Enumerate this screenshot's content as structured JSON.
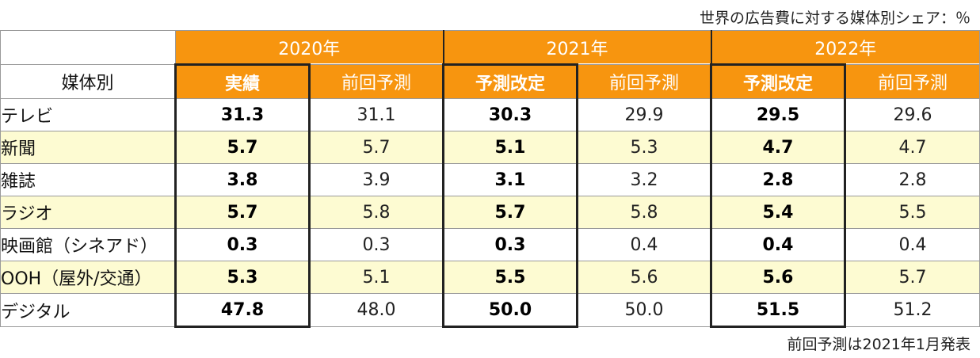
{
  "caption_top": "世界の広告費に対する媒体別シェア：％",
  "caption_bottom": "前回予測は2021年1月発表",
  "chart_data": {
    "type": "table",
    "row_header_label": "媒体別",
    "years": [
      {
        "label": "2020年",
        "columns": [
          "実績",
          "前回予測"
        ]
      },
      {
        "label": "2021年",
        "columns": [
          "予測改定",
          "前回予測"
        ]
      },
      {
        "label": "2022年",
        "columns": [
          "予測改定",
          "前回予測"
        ]
      }
    ],
    "rows": [
      {
        "media": "テレビ",
        "values": [
          "31.3",
          "31.1",
          "30.3",
          "29.9",
          "29.5",
          "29.6"
        ]
      },
      {
        "media": "新聞",
        "values": [
          "5.7",
          "5.7",
          "5.1",
          "5.3",
          "4.7",
          "4.7"
        ]
      },
      {
        "media": "雑誌",
        "values": [
          "3.8",
          "3.9",
          "3.1",
          "3.2",
          "2.8",
          "2.8"
        ]
      },
      {
        "media": "ラジオ",
        "values": [
          "5.7",
          "5.8",
          "5.7",
          "5.8",
          "5.4",
          "5.5"
        ]
      },
      {
        "media": "映画館（シネアド）",
        "values": [
          "0.3",
          "0.3",
          "0.3",
          "0.4",
          "0.4",
          "0.4"
        ]
      },
      {
        "media": "OOH（屋外/交通）",
        "values": [
          "5.3",
          "5.1",
          "5.5",
          "5.6",
          "5.6",
          "5.7"
        ]
      },
      {
        "media": "デジタル",
        "values": [
          "47.8",
          "48.0",
          "50.0",
          "50.0",
          "51.5",
          "51.2"
        ]
      }
    ]
  },
  "colors": {
    "header_orange": "#f7950f",
    "alt_row": "#fdfbd2"
  }
}
